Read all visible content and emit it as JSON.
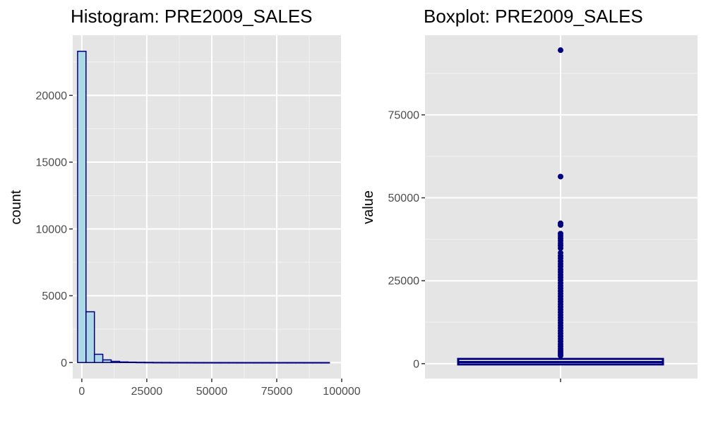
{
  "chart_data": [
    {
      "type": "bar",
      "subtype": "histogram",
      "title": "Histogram: PRE2009_SALES",
      "xlabel": "",
      "ylabel": "count",
      "xlim": [
        -3500,
        100000
      ],
      "ylim": [
        -1200,
        24500
      ],
      "x_ticks": [
        0,
        25000,
        50000,
        75000,
        100000
      ],
      "x_tick_labels": [
        "0",
        "25000",
        "50000",
        "75000",
        "100000"
      ],
      "y_ticks": [
        0,
        5000,
        10000,
        15000,
        20000
      ],
      "bin_width": 3230,
      "bins_start": -1615,
      "values": [
        23300,
        3800,
        620,
        200,
        90,
        45,
        30,
        20,
        15,
        10,
        8,
        6,
        5,
        4,
        3,
        3,
        2,
        2,
        2,
        1,
        1,
        1,
        1,
        1,
        1,
        1,
        1,
        1,
        1,
        1
      ],
      "fill_color": "#add8e6",
      "outline_color": "#00007f",
      "grid": true
    },
    {
      "type": "boxplot",
      "title": "Boxplot: PRE2009_SALES",
      "xlabel": "",
      "ylabel": "value",
      "ylim": [
        -4500,
        99000
      ],
      "y_ticks": [
        0,
        25000,
        50000,
        75000
      ],
      "box": {
        "q1": 200,
        "median": 500,
        "q3": 1000,
        "whisker_low": 0,
        "whisker_high": 2200
      },
      "outliers": [
        94500,
        56400,
        42300,
        41800,
        39200,
        38500,
        37800,
        37100,
        36300,
        35600,
        34800,
        33400,
        32500,
        31800,
        30900,
        30100,
        29300,
        28400,
        27600,
        26800,
        26000,
        25200,
        24300,
        23500,
        22700,
        21900,
        21100,
        20300,
        19500,
        18700,
        17900,
        17100,
        16300,
        15500,
        14700,
        13900,
        13100,
        12300,
        11500,
        10700,
        9900,
        9100,
        8300,
        7500,
        6700,
        5900,
        5200,
        4500,
        3900,
        3300,
        2800,
        2400
      ],
      "color": "#00007f",
      "grid": true
    }
  ]
}
